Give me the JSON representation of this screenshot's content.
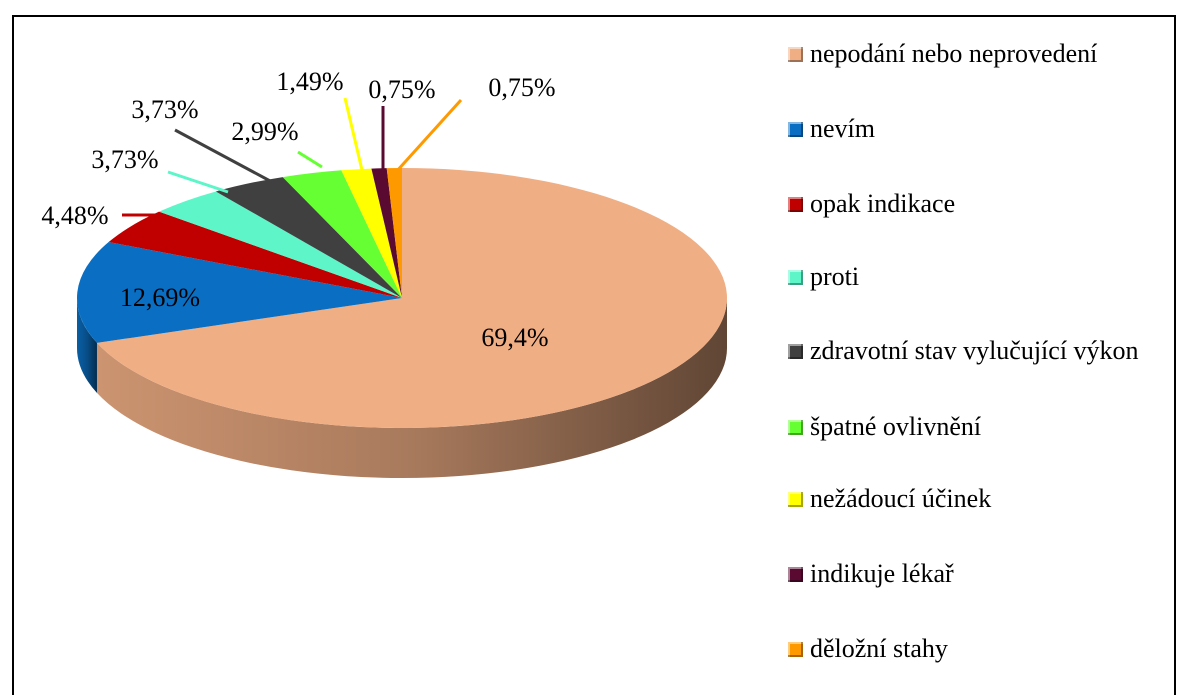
{
  "chart_data": {
    "type": "pie",
    "categories": [
      "nepodání nebo neprovedení",
      "nevím",
      "opak indikace",
      "proti",
      "zdravotní stav vylučující výkon",
      "špatné ovlivnění",
      "nežádoucí účinek",
      "indikuje lékař",
      "děložní stahy"
    ],
    "values": [
      69.4,
      12.69,
      4.48,
      3.73,
      3.73,
      2.99,
      1.49,
      0.75,
      0.75
    ],
    "value_labels": [
      "69,4%",
      "12,69%",
      "4,48%",
      "3,73%",
      "3,73%",
      "2,99%",
      "1,49%",
      "0,75%",
      "0,75%"
    ],
    "colors": [
      "#f0ae84",
      "#0a6fc2",
      "#c00000",
      "#5ef5c8",
      "#404040",
      "#66ff33",
      "#ffff00",
      "#5a0a30",
      "#ff9900"
    ],
    "legend": "right"
  }
}
